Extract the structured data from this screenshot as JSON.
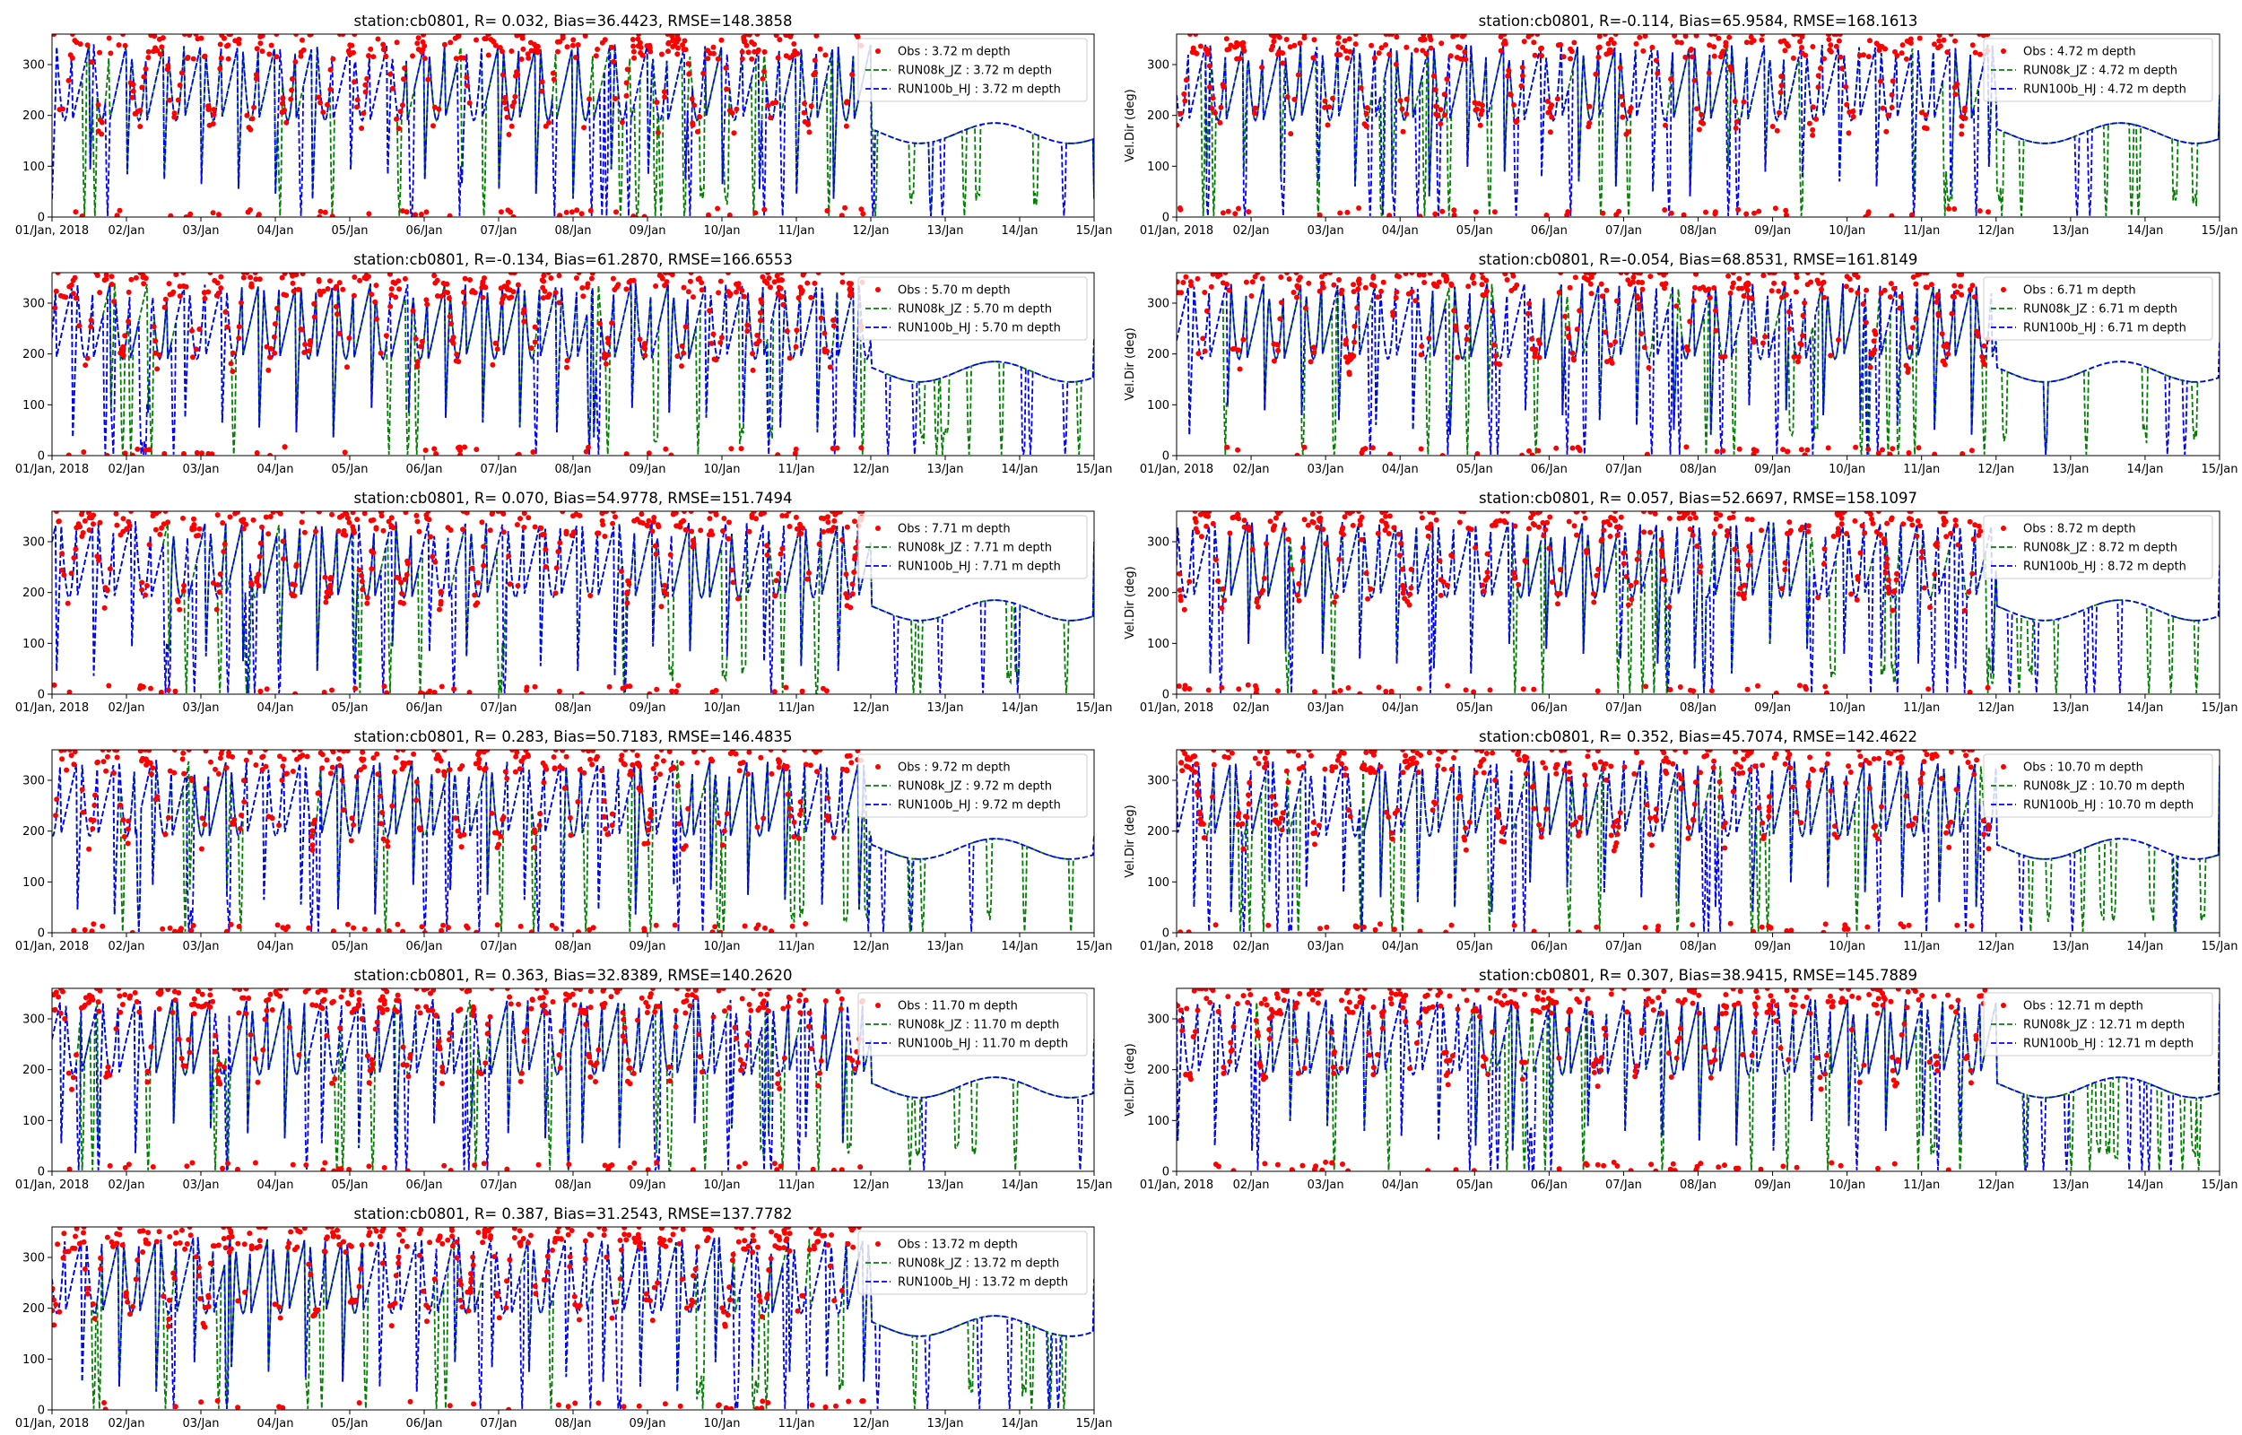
{
  "figure": {
    "colors": {
      "obs": "#ff0000",
      "run08k": "#008000",
      "run100b": "#0000ff"
    }
  },
  "chart_data": [
    {
      "type": "line",
      "title": "station:cb0801, R= 0.032, Bias=36.4423, RMSE=148.3858",
      "ylabel": "",
      "xlim": [
        "01/Jan, 2018",
        "15/Jan"
      ],
      "ylim": [
        0,
        360
      ],
      "xticks": [
        "01/Jan, 2018",
        "02/Jan",
        "03/Jan",
        "04/Jan",
        "05/Jan",
        "06/Jan",
        "07/Jan",
        "08/Jan",
        "09/Jan",
        "10/Jan",
        "11/Jan",
        "12/Jan",
        "13/Jan",
        "14/Jan",
        "15/Jan"
      ],
      "yticks": [
        0,
        100,
        200,
        300
      ],
      "legend": [
        "Obs : 3.72 m depth",
        "RUN08k_JZ : 3.72 m depth",
        "RUN100b_HJ : 3.72 m depth"
      ],
      "legend_position": "upper-right",
      "obs_end_day": 10.9
    },
    {
      "type": "line",
      "title": "station:cb0801, R=-0.114, Bias=65.9584, RMSE=168.1613",
      "ylabel": "Vel.Dir (deg)",
      "xlim": [
        "01/Jan, 2018",
        "15/Jan"
      ],
      "ylim": [
        0,
        360
      ],
      "xticks": [
        "01/Jan, 2018",
        "02/Jan",
        "03/Jan",
        "04/Jan",
        "05/Jan",
        "06/Jan",
        "07/Jan",
        "08/Jan",
        "09/Jan",
        "10/Jan",
        "11/Jan",
        "12/Jan",
        "13/Jan",
        "14/Jan",
        "15/Jan"
      ],
      "yticks": [
        0,
        100,
        200,
        300
      ],
      "legend": [
        "Obs : 4.72 m depth",
        "RUN08k_JZ : 4.72 m depth",
        "RUN100b_HJ : 4.72 m depth"
      ],
      "legend_position": "upper-right",
      "obs_end_day": 10.9
    },
    {
      "type": "line",
      "title": "station:cb0801, R=-0.134, Bias=61.2870, RMSE=166.6553",
      "ylabel": "",
      "xlim": [
        "01/Jan, 2018",
        "15/Jan"
      ],
      "ylim": [
        0,
        360
      ],
      "xticks": [
        "01/Jan, 2018",
        "02/Jan",
        "03/Jan",
        "04/Jan",
        "05/Jan",
        "06/Jan",
        "07/Jan",
        "08/Jan",
        "09/Jan",
        "10/Jan",
        "11/Jan",
        "12/Jan",
        "13/Jan",
        "14/Jan",
        "15/Jan"
      ],
      "yticks": [
        0,
        100,
        200,
        300
      ],
      "legend": [
        "Obs : 5.70 m depth",
        "RUN08k_JZ : 5.70 m depth",
        "RUN100b_HJ : 5.70 m depth"
      ],
      "legend_position": "upper-right",
      "obs_end_day": 10.9
    },
    {
      "type": "line",
      "title": "station:cb0801, R=-0.054, Bias=68.8531, RMSE=161.8149",
      "ylabel": "Vel.Dir (deg)",
      "xlim": [
        "01/Jan, 2018",
        "15/Jan"
      ],
      "ylim": [
        0,
        360
      ],
      "xticks": [
        "01/Jan, 2018",
        "02/Jan",
        "03/Jan",
        "04/Jan",
        "05/Jan",
        "06/Jan",
        "07/Jan",
        "08/Jan",
        "09/Jan",
        "10/Jan",
        "11/Jan",
        "12/Jan",
        "13/Jan",
        "14/Jan",
        "15/Jan"
      ],
      "yticks": [
        0,
        100,
        200,
        300
      ],
      "legend": [
        "Obs : 6.71 m depth",
        "RUN08k_JZ : 6.71 m depth",
        "RUN100b_HJ : 6.71 m depth"
      ],
      "legend_position": "upper-right",
      "obs_end_day": 10.9
    },
    {
      "type": "line",
      "title": "station:cb0801, R= 0.070, Bias=54.9778, RMSE=151.7494",
      "ylabel": "",
      "xlim": [
        "01/Jan, 2018",
        "15/Jan"
      ],
      "ylim": [
        0,
        360
      ],
      "xticks": [
        "01/Jan, 2018",
        "02/Jan",
        "03/Jan",
        "04/Jan",
        "05/Jan",
        "06/Jan",
        "07/Jan",
        "08/Jan",
        "09/Jan",
        "10/Jan",
        "11/Jan",
        "12/Jan",
        "13/Jan",
        "14/Jan",
        "15/Jan"
      ],
      "yticks": [
        0,
        100,
        200,
        300
      ],
      "legend": [
        "Obs : 7.71 m depth",
        "RUN08k_JZ : 7.71 m depth",
        "RUN100b_HJ : 7.71 m depth"
      ],
      "legend_position": "upper-right",
      "obs_end_day": 10.9
    },
    {
      "type": "line",
      "title": "station:cb0801, R= 0.057, Bias=52.6697, RMSE=158.1097",
      "ylabel": "Vel.Dir (deg)",
      "xlim": [
        "01/Jan, 2018",
        "15/Jan"
      ],
      "ylim": [
        0,
        360
      ],
      "xticks": [
        "01/Jan, 2018",
        "02/Jan",
        "03/Jan",
        "04/Jan",
        "05/Jan",
        "06/Jan",
        "07/Jan",
        "08/Jan",
        "09/Jan",
        "10/Jan",
        "11/Jan",
        "12/Jan",
        "13/Jan",
        "14/Jan",
        "15/Jan"
      ],
      "yticks": [
        0,
        100,
        200,
        300
      ],
      "legend": [
        "Obs : 8.72 m depth",
        "RUN08k_JZ : 8.72 m depth",
        "RUN100b_HJ : 8.72 m depth"
      ],
      "legend_position": "upper-right",
      "obs_end_day": 10.9
    },
    {
      "type": "line",
      "title": "station:cb0801, R= 0.283, Bias=50.7183, RMSE=146.4835",
      "ylabel": "",
      "xlim": [
        "01/Jan, 2018",
        "15/Jan"
      ],
      "ylim": [
        0,
        360
      ],
      "xticks": [
        "01/Jan, 2018",
        "02/Jan",
        "03/Jan",
        "04/Jan",
        "05/Jan",
        "06/Jan",
        "07/Jan",
        "08/Jan",
        "09/Jan",
        "10/Jan",
        "11/Jan",
        "12/Jan",
        "13/Jan",
        "14/Jan",
        "15/Jan"
      ],
      "yticks": [
        0,
        100,
        200,
        300
      ],
      "legend": [
        "Obs : 9.72 m depth",
        "RUN08k_JZ : 9.72 m depth",
        "RUN100b_HJ : 9.72 m depth"
      ],
      "legend_position": "upper-right",
      "obs_end_day": 10.9
    },
    {
      "type": "line",
      "title": "station:cb0801, R= 0.352, Bias=45.7074, RMSE=142.4622",
      "ylabel": "Vel.Dir (deg)",
      "xlim": [
        "01/Jan, 2018",
        "15/Jan"
      ],
      "ylim": [
        0,
        360
      ],
      "xticks": [
        "01/Jan, 2018",
        "02/Jan",
        "03/Jan",
        "04/Jan",
        "05/Jan",
        "06/Jan",
        "07/Jan",
        "08/Jan",
        "09/Jan",
        "10/Jan",
        "11/Jan",
        "12/Jan",
        "13/Jan",
        "14/Jan",
        "15/Jan"
      ],
      "yticks": [
        0,
        100,
        200,
        300
      ],
      "legend": [
        "Obs : 10.70 m depth",
        "RUN08k_JZ : 10.70 m depth",
        "RUN100b_HJ : 10.70 m depth"
      ],
      "legend_position": "upper-right",
      "obs_end_day": 10.9
    },
    {
      "type": "line",
      "title": "station:cb0801, R= 0.363, Bias=32.8389, RMSE=140.2620",
      "ylabel": "",
      "xlim": [
        "01/Jan, 2018",
        "15/Jan"
      ],
      "ylim": [
        0,
        360
      ],
      "xticks": [
        "01/Jan, 2018",
        "02/Jan",
        "03/Jan",
        "04/Jan",
        "05/Jan",
        "06/Jan",
        "07/Jan",
        "08/Jan",
        "09/Jan",
        "10/Jan",
        "11/Jan",
        "12/Jan",
        "13/Jan",
        "14/Jan",
        "15/Jan"
      ],
      "yticks": [
        0,
        100,
        200,
        300
      ],
      "legend": [
        "Obs : 11.70 m depth",
        "RUN08k_JZ : 11.70 m depth",
        "RUN100b_HJ : 11.70 m depth"
      ],
      "legend_position": "upper-right",
      "obs_end_day": 10.9
    },
    {
      "type": "line",
      "title": "station:cb0801, R= 0.307, Bias=38.9415, RMSE=145.7889",
      "ylabel": "Vel.Dir (deg)",
      "xlim": [
        "01/Jan, 2018",
        "15/Jan"
      ],
      "ylim": [
        0,
        360
      ],
      "xticks": [
        "01/Jan, 2018",
        "02/Jan",
        "03/Jan",
        "04/Jan",
        "05/Jan",
        "06/Jan",
        "07/Jan",
        "08/Jan",
        "09/Jan",
        "10/Jan",
        "11/Jan",
        "12/Jan",
        "13/Jan",
        "14/Jan",
        "15/Jan"
      ],
      "yticks": [
        0,
        100,
        200,
        300
      ],
      "legend": [
        "Obs : 12.71 m depth",
        "RUN08k_JZ : 12.71 m depth",
        "RUN100b_HJ : 12.71 m depth"
      ],
      "legend_position": "upper-right",
      "obs_end_day": 10.9
    },
    {
      "type": "line",
      "title": "station:cb0801, R= 0.387, Bias=31.2543, RMSE=137.7782",
      "ylabel": "",
      "xlim": [
        "01/Jan, 2018",
        "15/Jan"
      ],
      "ylim": [
        0,
        360
      ],
      "xticks": [
        "01/Jan, 2018",
        "02/Jan",
        "03/Jan",
        "04/Jan",
        "05/Jan",
        "06/Jan",
        "07/Jan",
        "08/Jan",
        "09/Jan",
        "10/Jan",
        "11/Jan",
        "12/Jan",
        "13/Jan",
        "14/Jan",
        "15/Jan"
      ],
      "yticks": [
        0,
        100,
        200,
        300
      ],
      "legend": [
        "Obs : 13.72 m depth",
        "RUN08k_JZ : 13.72 m depth",
        "RUN100b_HJ : 13.72 m depth"
      ],
      "legend_position": "upper-right",
      "obs_end_day": 10.9
    }
  ]
}
